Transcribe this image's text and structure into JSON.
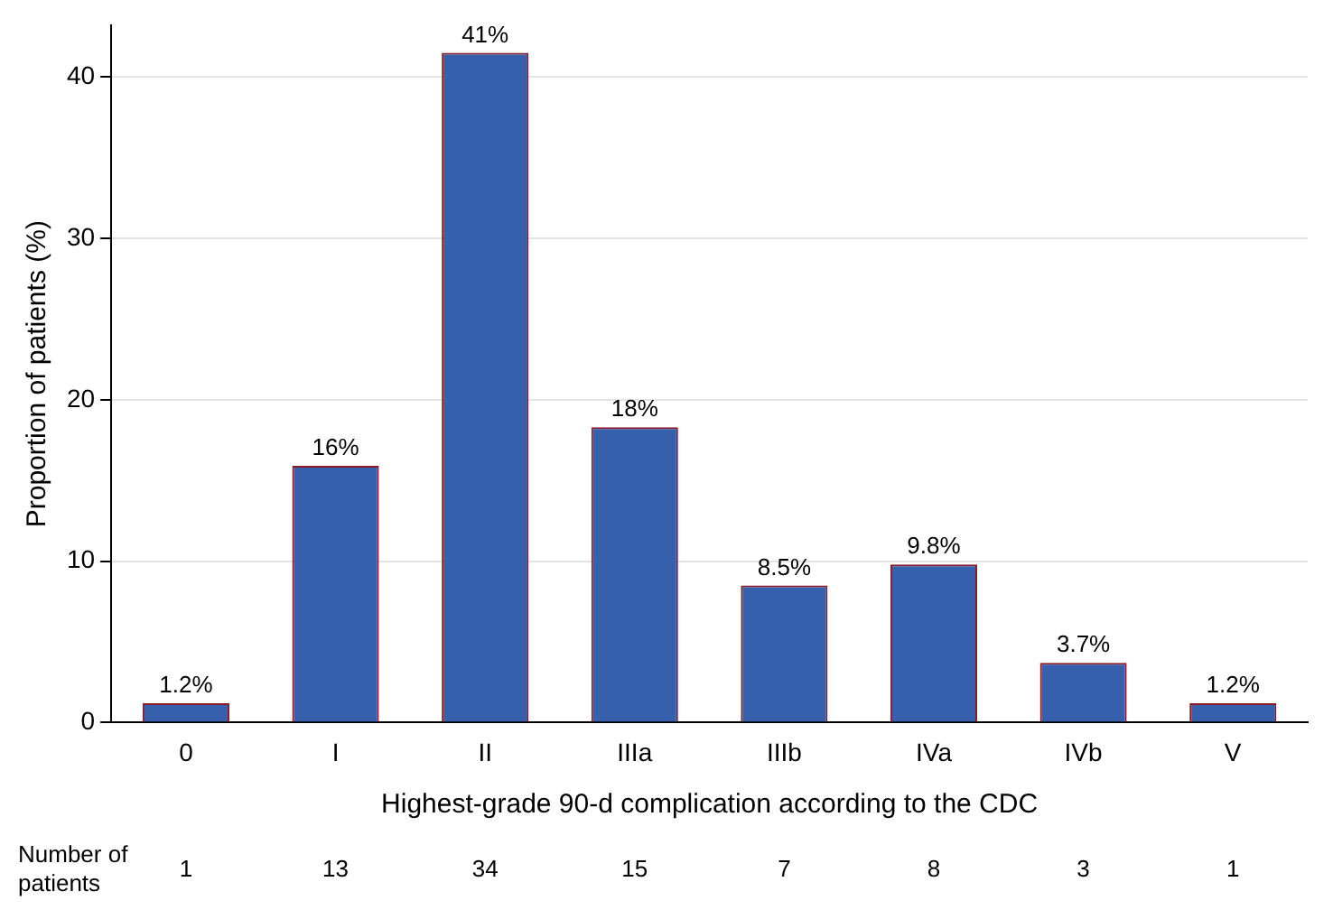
{
  "chart_data": {
    "type": "bar",
    "xlabel": "Highest-grade 90-d complication according to the CDC",
    "ylabel": "Proportion of patients (%)",
    "categories": [
      "0",
      "I",
      "II",
      "IIIa",
      "IIIb",
      "IVa",
      "IVb",
      "V"
    ],
    "values": [
      1.2,
      15.9,
      41.5,
      18.3,
      8.5,
      9.8,
      3.7,
      1.2
    ],
    "value_labels": [
      "1.2%",
      "16%",
      "41%",
      "18%",
      "8.5%",
      "9.8%",
      "3.7%",
      "1.2%"
    ],
    "color": "#3660ac",
    "ylim": [
      0,
      43.2
    ],
    "yticks": [
      0,
      10,
      20,
      30,
      40
    ],
    "grid": "y",
    "legend": false,
    "annotations": [
      "Number of patients",
      "1",
      "13",
      "34",
      "15",
      "7",
      "8",
      "3",
      "1"
    ]
  }
}
